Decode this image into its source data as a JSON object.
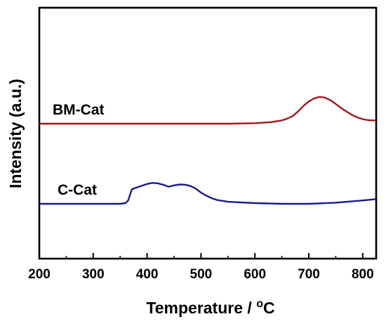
{
  "chart_data": {
    "type": "line",
    "xlabel": "Temperature / ",
    "xlabel_unit_sup": "o",
    "xlabel_unit": "C",
    "ylabel": "Intensity (a.u.)",
    "xlim": [
      200,
      825
    ],
    "xticks": [
      200,
      300,
      400,
      500,
      600,
      700,
      800
    ],
    "y_ticks_shown": false,
    "grid": false,
    "legend": "none",
    "series": [
      {
        "name": "BM-Cat",
        "color": "#a3161d",
        "x": [
          200,
          300,
          400,
          500,
          550,
          600,
          630,
          650,
          660,
          670,
          680,
          690,
          700,
          710,
          720,
          730,
          740,
          750,
          760,
          770,
          780,
          790,
          800,
          810,
          820,
          825
        ],
        "y": [
          0.0,
          0.0,
          0.0,
          0.0,
          0.0,
          0.02,
          0.06,
          0.13,
          0.2,
          0.3,
          0.48,
          0.7,
          0.88,
          1.0,
          1.06,
          1.03,
          0.93,
          0.78,
          0.62,
          0.48,
          0.35,
          0.25,
          0.18,
          0.14,
          0.13,
          0.13
        ]
      },
      {
        "name": "C-Cat",
        "color": "#1a1a8c",
        "x": [
          200,
          300,
          350,
          360,
          365,
          368,
          372,
          380,
          390,
          400,
          410,
          420,
          430,
          440,
          450,
          460,
          470,
          480,
          490,
          500,
          510,
          520,
          530,
          550,
          600,
          650,
          700,
          750,
          800,
          825
        ],
        "y": [
          0.0,
          0.0,
          0.0,
          0.03,
          0.15,
          0.38,
          0.65,
          0.72,
          0.8,
          0.88,
          0.93,
          0.91,
          0.85,
          0.76,
          0.82,
          0.86,
          0.85,
          0.8,
          0.68,
          0.5,
          0.36,
          0.25,
          0.17,
          0.09,
          0.03,
          0.0,
          0.0,
          0.05,
          0.15,
          0.21
        ]
      }
    ]
  }
}
